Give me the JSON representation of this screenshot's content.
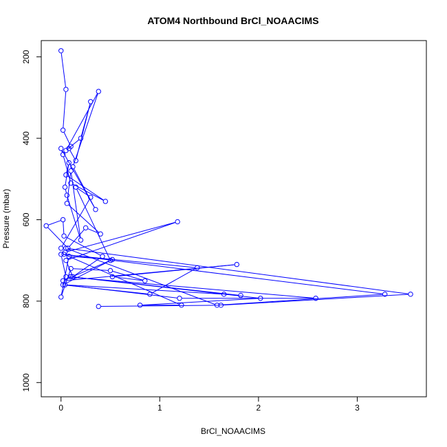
{
  "chart_data": {
    "type": "line",
    "title": "ATOM4 Northbound BrCl_NOAACIMS",
    "xlabel": "BrCl_NOAACIMS",
    "ylabel": "Pressure (mbar)",
    "xlim": [
      -0.2,
      3.7
    ],
    "ylim": [
      1035,
      160
    ],
    "y_reversed": true,
    "grid": false,
    "legend": "none",
    "x_ticks": [
      0,
      1,
      2,
      3
    ],
    "y_ticks": [
      200,
      400,
      600,
      800,
      1000
    ],
    "x_tick_labels": [
      "0",
      "1",
      "2",
      "3"
    ],
    "y_tick_labels": [
      "200",
      "400",
      "600",
      "800",
      "1000"
    ],
    "color": "#0000ff",
    "marker": "open-circle",
    "series": [
      {
        "x": [
          0.0,
          0.05,
          0.02,
          0.1,
          0.08,
          0.15,
          0.3,
          0.2,
          0.05,
          0.38,
          0.12,
          0.35,
          0.0,
          0.02,
          0.1,
          0.45,
          0.05,
          0.08,
          0.04,
          0.06,
          0.2,
          0.1,
          0.06,
          0.4,
          0.25,
          0.07,
          -0.15,
          0.02,
          0.03,
          0.42,
          0.12,
          0.05,
          1.18,
          0.04,
          0.0,
          0.3,
          0.15,
          0.5,
          0.02,
          1.78,
          0.52,
          0.85,
          0.5,
          0.1,
          0.0,
          0.08,
          0.52,
          0.02,
          0.9,
          1.38,
          0.0,
          0.05,
          2.58,
          1.2,
          0.04,
          1.65,
          1.82,
          0.1,
          2.02,
          0.8,
          1.22,
          0.03,
          3.28,
          1.58,
          0.05,
          3.54,
          1.62,
          0.38
        ],
        "y": [
          185,
          280,
          380,
          420,
          425,
          455,
          310,
          400,
          430,
          285,
          470,
          575,
          425,
          440,
          510,
          555,
          490,
          460,
          520,
          540,
          650,
          480,
          560,
          635,
          620,
          670,
          615,
          600,
          640,
          690,
          740,
          700,
          605,
          680,
          670,
          545,
          520,
          700,
          750,
          710,
          740,
          750,
          725,
          720,
          790,
          690,
          698,
          760,
          783,
          718,
          685,
          740,
          793,
          793,
          760,
          783,
          786,
          740,
          793,
          810,
          810,
          685,
          783,
          810,
          670,
          783,
          810,
          813
        ]
      }
    ]
  }
}
